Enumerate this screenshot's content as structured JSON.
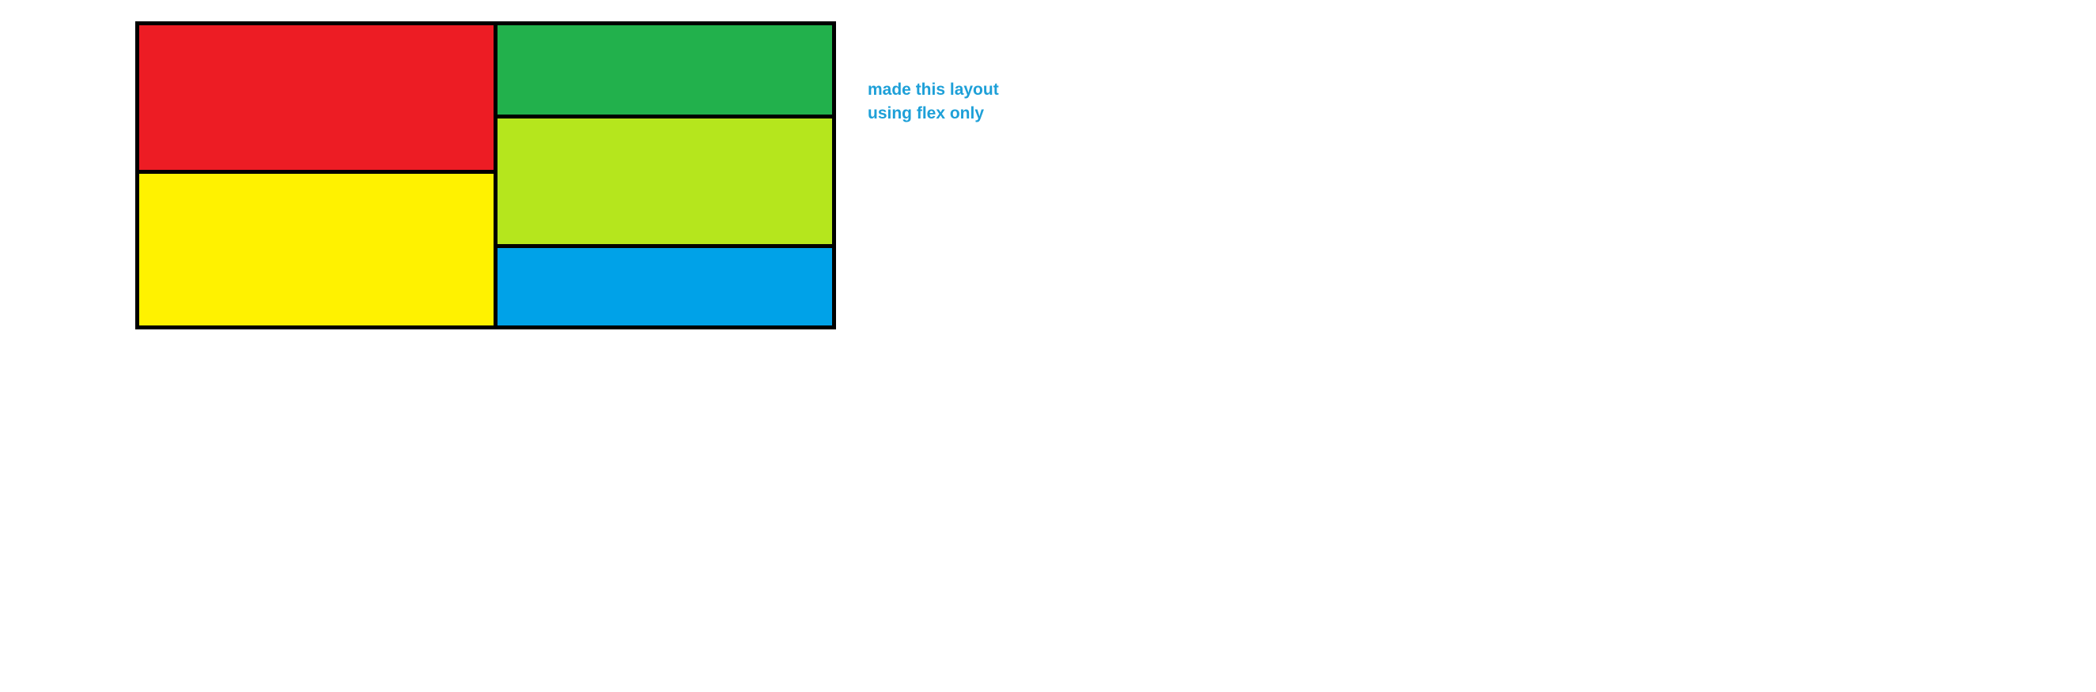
{
  "diagram": {
    "blocks": {
      "red": {
        "color": "#ed1c24"
      },
      "yellow": {
        "color": "#fff200"
      },
      "green": {
        "color": "#22b14c"
      },
      "lime": {
        "color": "#b5e61d"
      },
      "blue": {
        "color": "#00a2e8"
      }
    },
    "border_color": "#000000"
  },
  "note": {
    "line1": "made this layout",
    "line2": "using flex only",
    "color": "#1ea0d8"
  }
}
